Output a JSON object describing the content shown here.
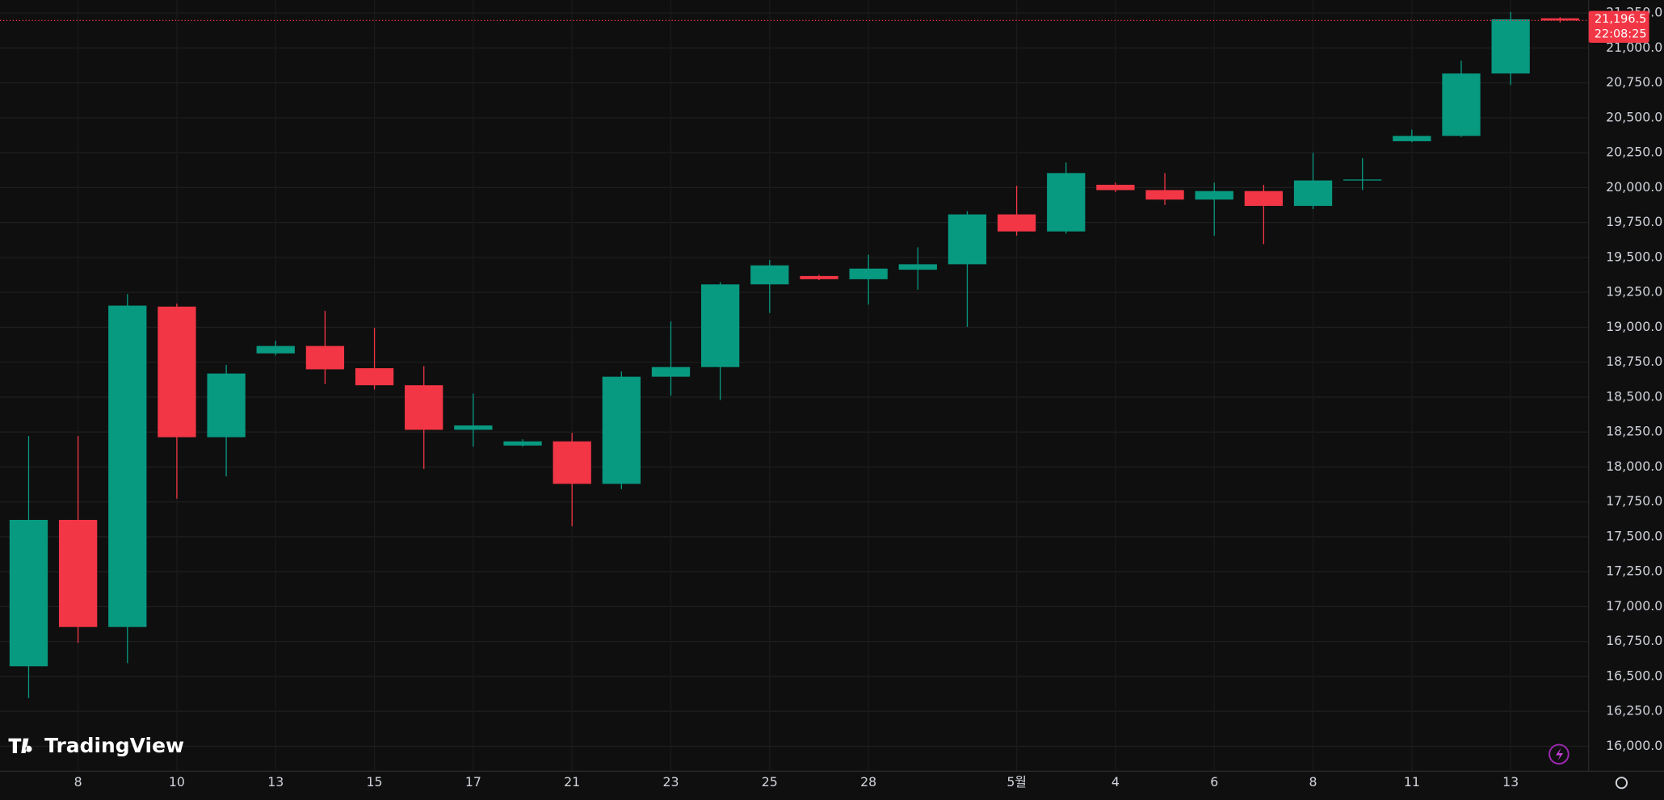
{
  "chart_data": {
    "type": "candlestick",
    "categories": [
      null,
      "8",
      null,
      "10",
      null,
      "13",
      null,
      "15",
      null,
      "17",
      null,
      "21",
      null,
      "23",
      null,
      "25",
      null,
      "28",
      null,
      null,
      "5월",
      null,
      "4",
      null,
      "6",
      null,
      "8",
      null,
      "11",
      null,
      "13",
      null
    ],
    "open": [
      16573,
      17621,
      16854,
      19148,
      18213,
      18813,
      18866,
      18707,
      18585,
      18266,
      18153,
      18183,
      17879,
      18646,
      18715,
      19307,
      19367,
      19344,
      19412,
      19451,
      19808,
      19686,
      20020,
      19982,
      19914,
      19975,
      19869,
      20051,
      20332,
      20370,
      20817,
      21212
    ],
    "high": [
      18221,
      18221,
      19238,
      19170,
      18730,
      18904,
      19117,
      18996,
      18722,
      18525,
      18198,
      18244,
      18684,
      19041,
      19322,
      19481,
      19375,
      19519,
      19572,
      19831,
      20013,
      20180,
      20036,
      20104,
      20036,
      20020,
      20249,
      20211,
      20415,
      20909,
      21258,
      21220
    ],
    "low": [
      16345,
      16740,
      16596,
      17773,
      17932,
      18798,
      18593,
      18555,
      17986,
      18145,
      18145,
      17576,
      17841,
      18510,
      18479,
      19102,
      19337,
      19162,
      19269,
      19003,
      19656,
      19670,
      19967,
      19876,
      19656,
      19595,
      19846,
      19982,
      20324,
      20362,
      20734,
      21182
    ],
    "close": [
      17621,
      16854,
      19155,
      18213,
      18669,
      18866,
      18699,
      18585,
      18266,
      18297,
      18183,
      17879,
      18646,
      18715,
      19307,
      19443,
      19344,
      19420,
      19451,
      19808,
      19686,
      20104,
      19982,
      19914,
      19975,
      19869,
      20051,
      20058,
      20370,
      20817,
      21205,
      21196.5
    ],
    "up_color": "#089981",
    "down_color": "#f23645",
    "ylim": [
      15837,
      21342
    ],
    "yticks": [
      {
        "value": 16000,
        "label": "16,000.0"
      },
      {
        "value": 16250,
        "label": "16,250.0"
      },
      {
        "value": 16500,
        "label": "16,500.0"
      },
      {
        "value": 16750,
        "label": "16,750.0"
      },
      {
        "value": 17000,
        "label": "17,000.0"
      },
      {
        "value": 17250,
        "label": "17,250.0"
      },
      {
        "value": 17500,
        "label": "17,500.0"
      },
      {
        "value": 17750,
        "label": "17,750.0"
      },
      {
        "value": 18000,
        "label": "18,000.0"
      },
      {
        "value": 18250,
        "label": "18,250.0"
      },
      {
        "value": 18500,
        "label": "18,500.0"
      },
      {
        "value": 18750,
        "label": "18,750.0"
      },
      {
        "value": 19000,
        "label": "19,000.0"
      },
      {
        "value": 19250,
        "label": "19,250.0"
      },
      {
        "value": 19500,
        "label": "19,500.0"
      },
      {
        "value": 19750,
        "label": "19,750.0"
      },
      {
        "value": 20000,
        "label": "20,000.0"
      },
      {
        "value": 20250,
        "label": "20,250.0"
      },
      {
        "value": 20500,
        "label": "20,500.0"
      },
      {
        "value": 20750,
        "label": "20,750.0"
      },
      {
        "value": 21000,
        "label": "21,000.0"
      },
      {
        "value": 21250,
        "label": "21,250.0"
      }
    ],
    "grid": true,
    "last_price": {
      "value": 21196.5,
      "label": "21,196.5"
    },
    "countdown": "22:08:25",
    "watermark": "TradingView"
  }
}
